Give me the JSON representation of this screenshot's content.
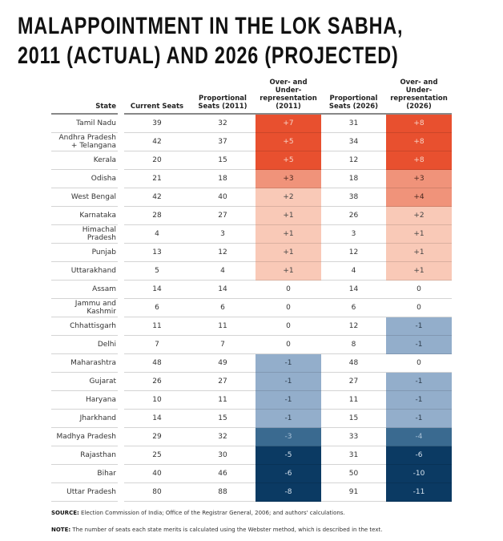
{
  "title_line1": "MALAPPOINTMENT IN THE LOK SABHA,",
  "title_line2": "2011 (ACTUAL) AND 2026 (PROJECTED)",
  "colors": {
    "over_high": "#e8502f",
    "over_mid": "#f0937a",
    "over_low": "#f9c9b7",
    "under_low": "#93aecb",
    "under_mid": "#3a6a90",
    "under_high": "#0b3a63"
  },
  "chart_data": {
    "type": "table",
    "columns": [
      "State",
      "Current Seats",
      "Proportional Seats (2011)",
      "Over- and Under-representation (2011)",
      "Proportional Seats (2026)",
      "Over- and Under-representation (2026)"
    ],
    "rows": [
      [
        "Tamil Nadu",
        "39",
        "32",
        "+7",
        "31",
        "+8"
      ],
      [
        "Andhra Pradesh + Telangana",
        "42",
        "37",
        "+5",
        "34",
        "+8"
      ],
      [
        "Kerala",
        "20",
        "15",
        "+5",
        "12",
        "+8"
      ],
      [
        "Odisha",
        "21",
        "18",
        "+3",
        "18",
        "+3"
      ],
      [
        "West Bengal",
        "42",
        "40",
        "+2",
        "38",
        "+4"
      ],
      [
        "Karnataka",
        "28",
        "27",
        "+1",
        "26",
        "+2"
      ],
      [
        "Himachal Pradesh",
        "4",
        "3",
        "+1",
        "3",
        "+1"
      ],
      [
        "Punjab",
        "13",
        "12",
        "+1",
        "12",
        "+1"
      ],
      [
        "Uttarakhand",
        "5",
        "4",
        "+1",
        "4",
        "+1"
      ],
      [
        "Assam",
        "14",
        "14",
        "0",
        "14",
        "0"
      ],
      [
        "Jammu and Kashmir",
        "6",
        "6",
        "0",
        "6",
        "0"
      ],
      [
        "Chhattisgarh",
        "11",
        "11",
        "0",
        "12",
        "-1"
      ],
      [
        "Delhi",
        "7",
        "7",
        "0",
        "8",
        "-1"
      ],
      [
        "Maharashtra",
        "48",
        "49",
        "-1",
        "48",
        "0"
      ],
      [
        "Gujarat",
        "26",
        "27",
        "-1",
        "27",
        "-1"
      ],
      [
        "Haryana",
        "10",
        "11",
        "-1",
        "11",
        "-1"
      ],
      [
        "Jharkhand",
        "14",
        "15",
        "-1",
        "15",
        "-1"
      ],
      [
        "Madhya Pradesh",
        "29",
        "32",
        "-3",
        "33",
        "-4"
      ],
      [
        "Rajasthan",
        "25",
        "30",
        "-5",
        "31",
        "-6"
      ],
      [
        "Bihar",
        "40",
        "46",
        "-6",
        "50",
        "-10"
      ],
      [
        "Uttar Pradesh",
        "80",
        "88",
        "-8",
        "91",
        "-11"
      ]
    ]
  },
  "source_label": "SOURCE:",
  "source_text": " Election Commission of India; Office of the Registrar General, 2006; and authors' calculations.",
  "note_label": "NOTE:",
  "note_text": " The number of seats each state merits is calculated using the Webster method, which is described in the text."
}
